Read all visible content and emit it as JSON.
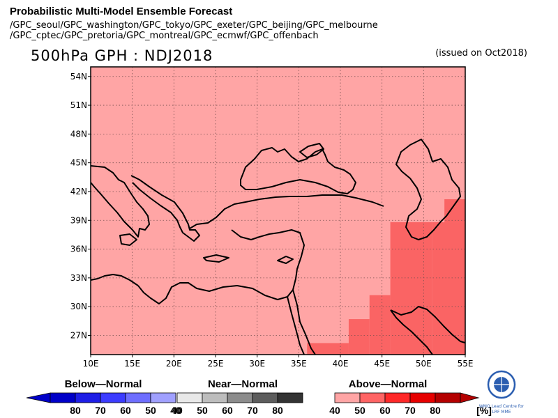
{
  "header": {
    "title": "Probabilistic Multi-Model Ensemble Forecast",
    "centres_line1": "/GPC_seoul/GPC_washington/GPC_tokyo/GPC_exeter/GPC_beijing/GPC_melbourne",
    "centres_line2": "/GPC_cptec/GPC_pretoria/GPC_montreal/GPC_ecmwf/GPC_offenbach",
    "map_title": "500hPa GPH : NDJ2018",
    "issued": "(issued on Oct2018)"
  },
  "map": {
    "lon_range": [
      10,
      55
    ],
    "lat_range": [
      25,
      55
    ],
    "lon_ticks": [
      10,
      15,
      20,
      25,
      30,
      35,
      40,
      45,
      50,
      55
    ],
    "lon_labels": [
      "10E",
      "15E",
      "20E",
      "25E",
      "30E",
      "35E",
      "40E",
      "45E",
      "50E",
      "55E"
    ],
    "lat_ticks": [
      27,
      30,
      33,
      36,
      39,
      42,
      45,
      48,
      51,
      54
    ],
    "lat_labels": [
      "27N",
      "30N",
      "33N",
      "36N",
      "39N",
      "42N",
      "45N",
      "48N",
      "51N",
      "54N"
    ],
    "background_category": "Above-Normal 40-50",
    "regions_above_normal_50_60": [
      {
        "lon": [
          36,
          41
        ],
        "lat": [
          25,
          26.2
        ]
      },
      {
        "lon": [
          41,
          43.5
        ],
        "lat": [
          25,
          28.7
        ]
      },
      {
        "lon": [
          43.5,
          46
        ],
        "lat": [
          25,
          31.2
        ]
      },
      {
        "lon": [
          46,
          51
        ],
        "lat": [
          25,
          38.8
        ]
      },
      {
        "lon": [
          51,
          55
        ],
        "lat": [
          25,
          38.8
        ]
      },
      {
        "lon": [
          52.5,
          55
        ],
        "lat": [
          38.8,
          41.2
        ]
      }
    ]
  },
  "legend": {
    "below": {
      "title": "Below—Normal",
      "labels": [
        "80",
        "70",
        "60",
        "50",
        "40"
      ],
      "colors": [
        "#0000c8",
        "#1e1ee6",
        "#3c3cff",
        "#6e6eff",
        "#a0a0ff"
      ]
    },
    "near": {
      "title": "Near—Normal",
      "labels": [
        "40",
        "50",
        "60",
        "70",
        "80"
      ],
      "colors": [
        "#e8e8e8",
        "#bdbdbd",
        "#8c8c8c",
        "#5c5c5c",
        "#333333"
      ]
    },
    "above": {
      "title": "Above—Normal",
      "labels": [
        "40",
        "50",
        "60",
        "70",
        "80",
        "[%]"
      ],
      "colors": [
        "#ffa5a5",
        "#ff6464",
        "#ff2828",
        "#e60000",
        "#b40000"
      ]
    },
    "logo_text": [
      "WMO Lead Centre for",
      "LRF MME"
    ]
  },
  "colors": {
    "above_40_50": "#ffa5a5",
    "above_50_60": "#fa6464",
    "coast": "#000000",
    "grid": "#7a5050"
  }
}
